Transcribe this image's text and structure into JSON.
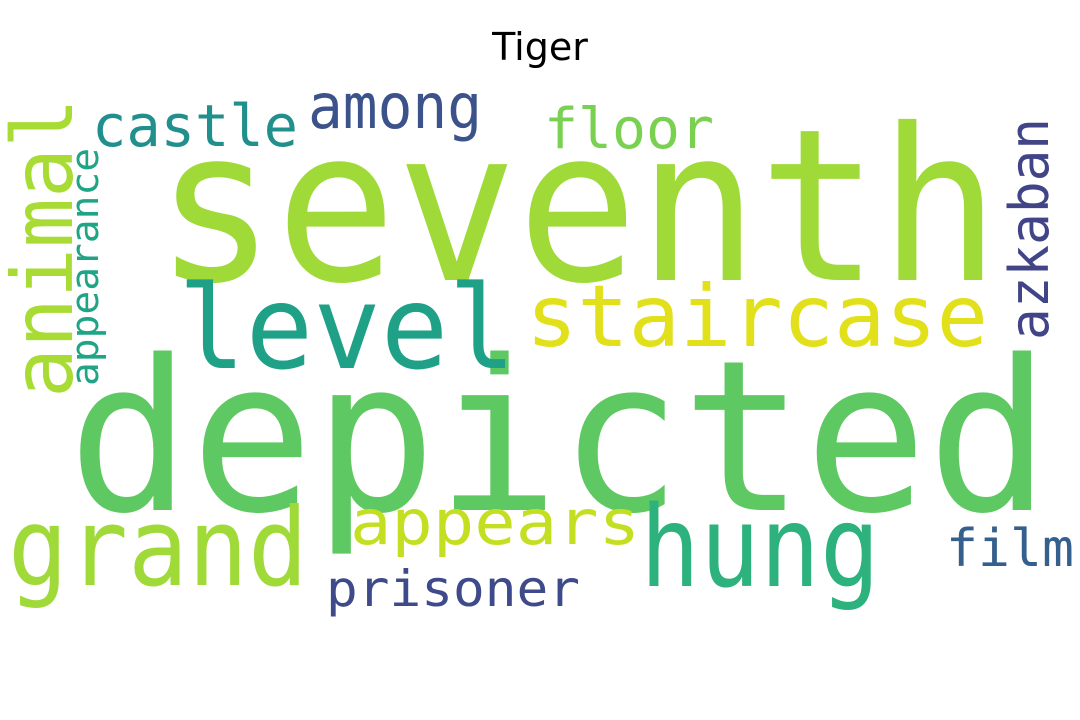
{
  "title": "Tiger",
  "words": [
    {
      "text": "seventh",
      "color": "#a0da39"
    },
    {
      "text": "depicted",
      "color": "#5ec962"
    },
    {
      "text": "level",
      "color": "#1fa187"
    },
    {
      "text": "staircase",
      "color": "#e1e01b"
    },
    {
      "text": "grand",
      "color": "#a0da39"
    },
    {
      "text": "hung",
      "color": "#2db27d"
    },
    {
      "text": "appears",
      "color": "#c4df22"
    },
    {
      "text": "animal",
      "color": "#a8db34"
    },
    {
      "text": "among",
      "color": "#3b528b"
    },
    {
      "text": "castle",
      "color": "#21908d"
    },
    {
      "text": "floor",
      "color": "#7ad151"
    },
    {
      "text": "azkaban",
      "color": "#414487"
    },
    {
      "text": "appearance",
      "color": "#20a486"
    },
    {
      "text": "prisoner",
      "color": "#3e4a89"
    },
    {
      "text": "film",
      "color": "#355f8d"
    }
  ]
}
